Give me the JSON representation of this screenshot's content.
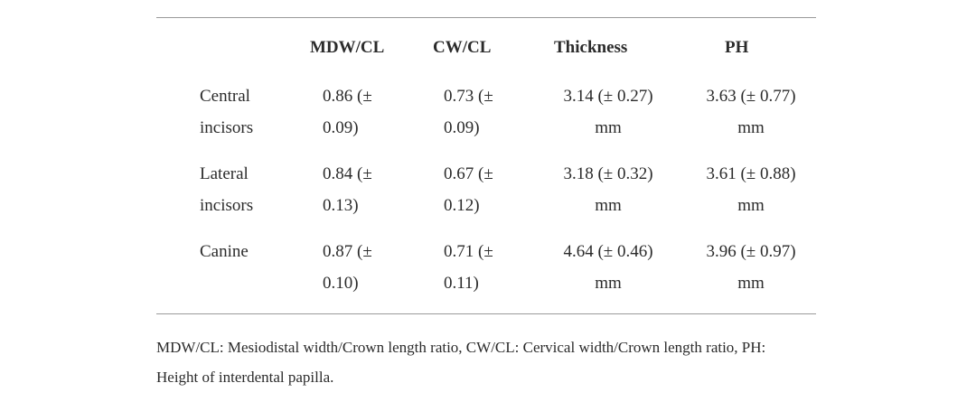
{
  "table": {
    "headers": [
      "",
      "MDW/CL",
      "CW/CL",
      "Thickness",
      "PH"
    ],
    "rows": [
      {
        "label": [
          "Central",
          "incisors"
        ],
        "mdw_cl": [
          "0.86 (±",
          "0.09)"
        ],
        "cw_cl": [
          "0.73 (±",
          "0.09)"
        ],
        "thickness": [
          "3.14 (± 0.27)",
          "mm"
        ],
        "ph": [
          "3.63 (± 0.77)",
          "mm"
        ]
      },
      {
        "label": [
          "Lateral",
          "incisors"
        ],
        "mdw_cl": [
          "0.84 (±",
          "0.13)"
        ],
        "cw_cl": [
          "0.67 (±",
          "0.12)"
        ],
        "thickness": [
          "3.18 (± 0.32)",
          "mm"
        ],
        "ph": [
          "3.61 (± 0.88)",
          "mm"
        ]
      },
      {
        "label": [
          "Canine",
          ""
        ],
        "mdw_cl": [
          "0.87 (±",
          "0.10)"
        ],
        "cw_cl": [
          "0.71 (±",
          "0.11)"
        ],
        "thickness": [
          "4.64 (± 0.46)",
          "mm"
        ],
        "ph": [
          "3.96 (± 0.97)",
          "mm"
        ]
      }
    ]
  },
  "caption": {
    "line1": "MDW/CL: Mesiodistal width/Crown length ratio, CW/CL: Cervical width/Crown length ratio, PH:",
    "line2": "Height of interdental papilla."
  }
}
